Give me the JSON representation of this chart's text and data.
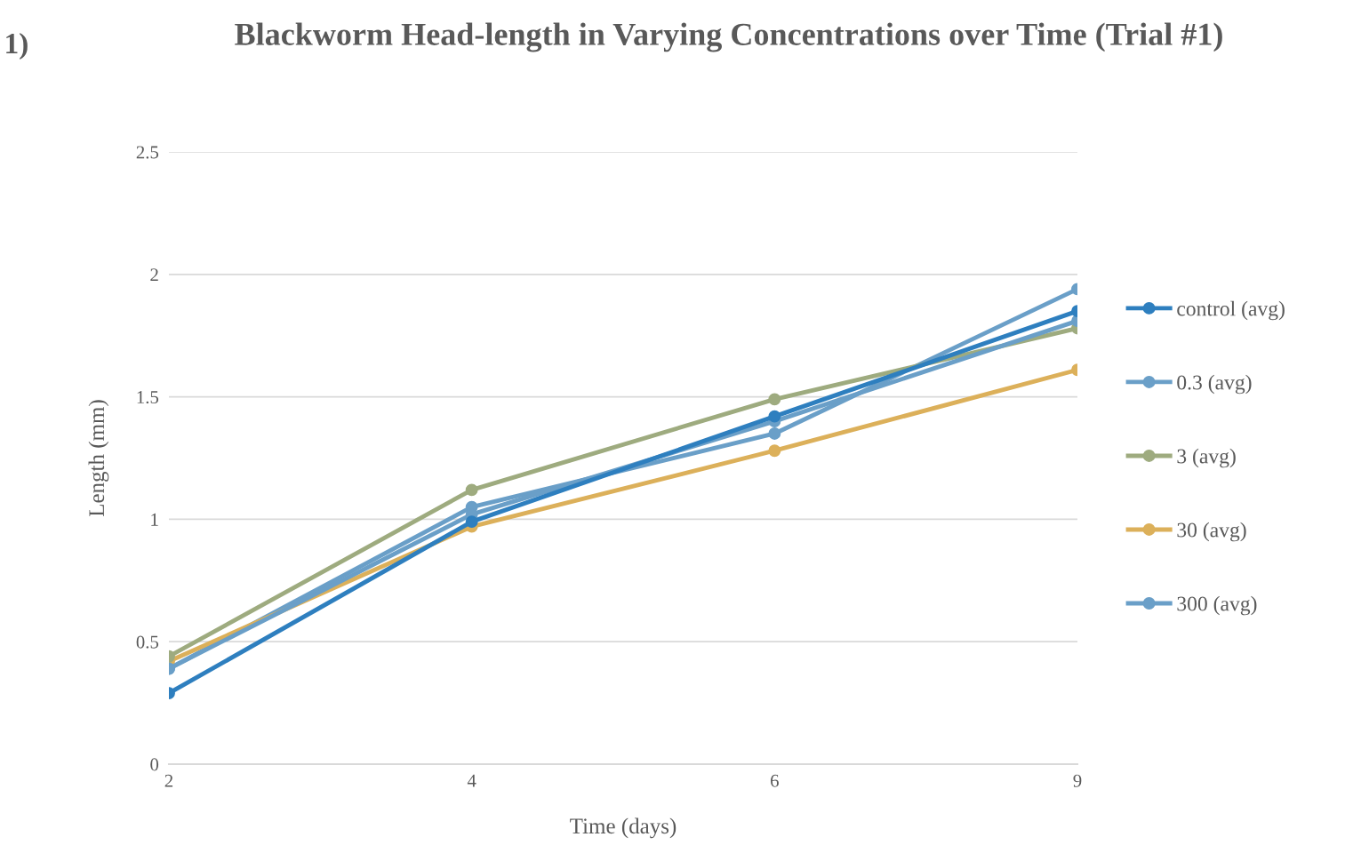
{
  "chart_data": {
    "type": "line",
    "title": "Blackworm Head-length in Varying Concentrations over Time (Trial #1)",
    "xlabel": "Time (days)",
    "ylabel": "Length (mm)",
    "annotations": [
      "1)"
    ],
    "categories": [
      "2",
      "4",
      "6",
      "9"
    ],
    "series": [
      {
        "name": "control (avg)",
        "color": "#2e7fbf",
        "values": [
          0.29,
          0.99,
          1.42,
          1.85
        ]
      },
      {
        "name": "0.3 (avg)",
        "color": "#6a9fc8",
        "values": [
          0.39,
          1.02,
          1.4,
          1.81
        ]
      },
      {
        "name": "3 (avg)",
        "color": "#9eab7f",
        "values": [
          0.44,
          1.12,
          1.49,
          1.78
        ]
      },
      {
        "name": "30 (avg)",
        "color": "#dcb05a",
        "values": [
          0.42,
          0.97,
          1.28,
          1.61
        ]
      },
      {
        "name": "300 (avg)",
        "color": "#6a9fc8",
        "values": [
          0.39,
          1.05,
          1.35,
          1.94
        ]
      }
    ],
    "ylim": [
      0,
      2.5
    ],
    "yticks": [
      0,
      0.5,
      1,
      1.5,
      2,
      2.5
    ],
    "grid": "y",
    "legend": "right",
    "marker": "circle",
    "line_style": "solid"
  }
}
